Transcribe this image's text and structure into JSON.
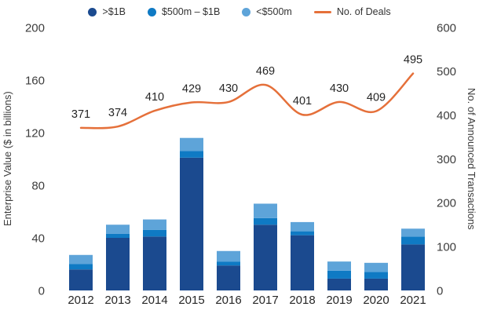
{
  "legend": {
    "position": "top",
    "entries": [
      ">$1B",
      "$500m – $1B",
      "<$500m",
      "No. of Deals"
    ]
  },
  "chart_data": {
    "type": "bar",
    "subtype": "stacked-bar-with-line-combo",
    "title": "",
    "categories": [
      "2012",
      "2013",
      "2014",
      "2015",
      "2016",
      "2017",
      "2018",
      "2019",
      "2020",
      "2021"
    ],
    "series": [
      {
        "name": ">$1B",
        "type": "bar",
        "axis": "left",
        "color": "#1b4a8f",
        "values": [
          16,
          40,
          41,
          101,
          19,
          50,
          42,
          9,
          9,
          35
        ]
      },
      {
        "name": "$500m – $1B",
        "type": "bar",
        "axis": "left",
        "color": "#0f7ac4",
        "values": [
          4,
          3,
          5,
          5,
          3,
          5,
          3,
          6,
          5,
          6
        ]
      },
      {
        "name": "<$500m",
        "type": "bar",
        "axis": "left",
        "color": "#5ea4d9",
        "values": [
          7,
          7,
          8,
          10,
          8,
          11,
          7,
          7,
          7,
          6
        ]
      },
      {
        "name": "No. of Deals",
        "type": "line",
        "axis": "right",
        "color": "#e5703a",
        "values": [
          371,
          374,
          410,
          429,
          430,
          469,
          401,
          430,
          409,
          495
        ],
        "data_labels": true
      }
    ],
    "left_axis": {
      "label": "Enterprise Value ($ in billions)",
      "min": 0,
      "max": 200,
      "step": 40,
      "ticks": [
        0,
        40,
        80,
        120,
        160,
        200
      ]
    },
    "right_axis": {
      "label": "No. of Announced Transactions",
      "min": 0,
      "max": 600,
      "step": 100,
      "ticks": [
        0,
        100,
        200,
        300,
        400,
        500,
        600
      ]
    },
    "grid": false,
    "legend_position": "top"
  }
}
